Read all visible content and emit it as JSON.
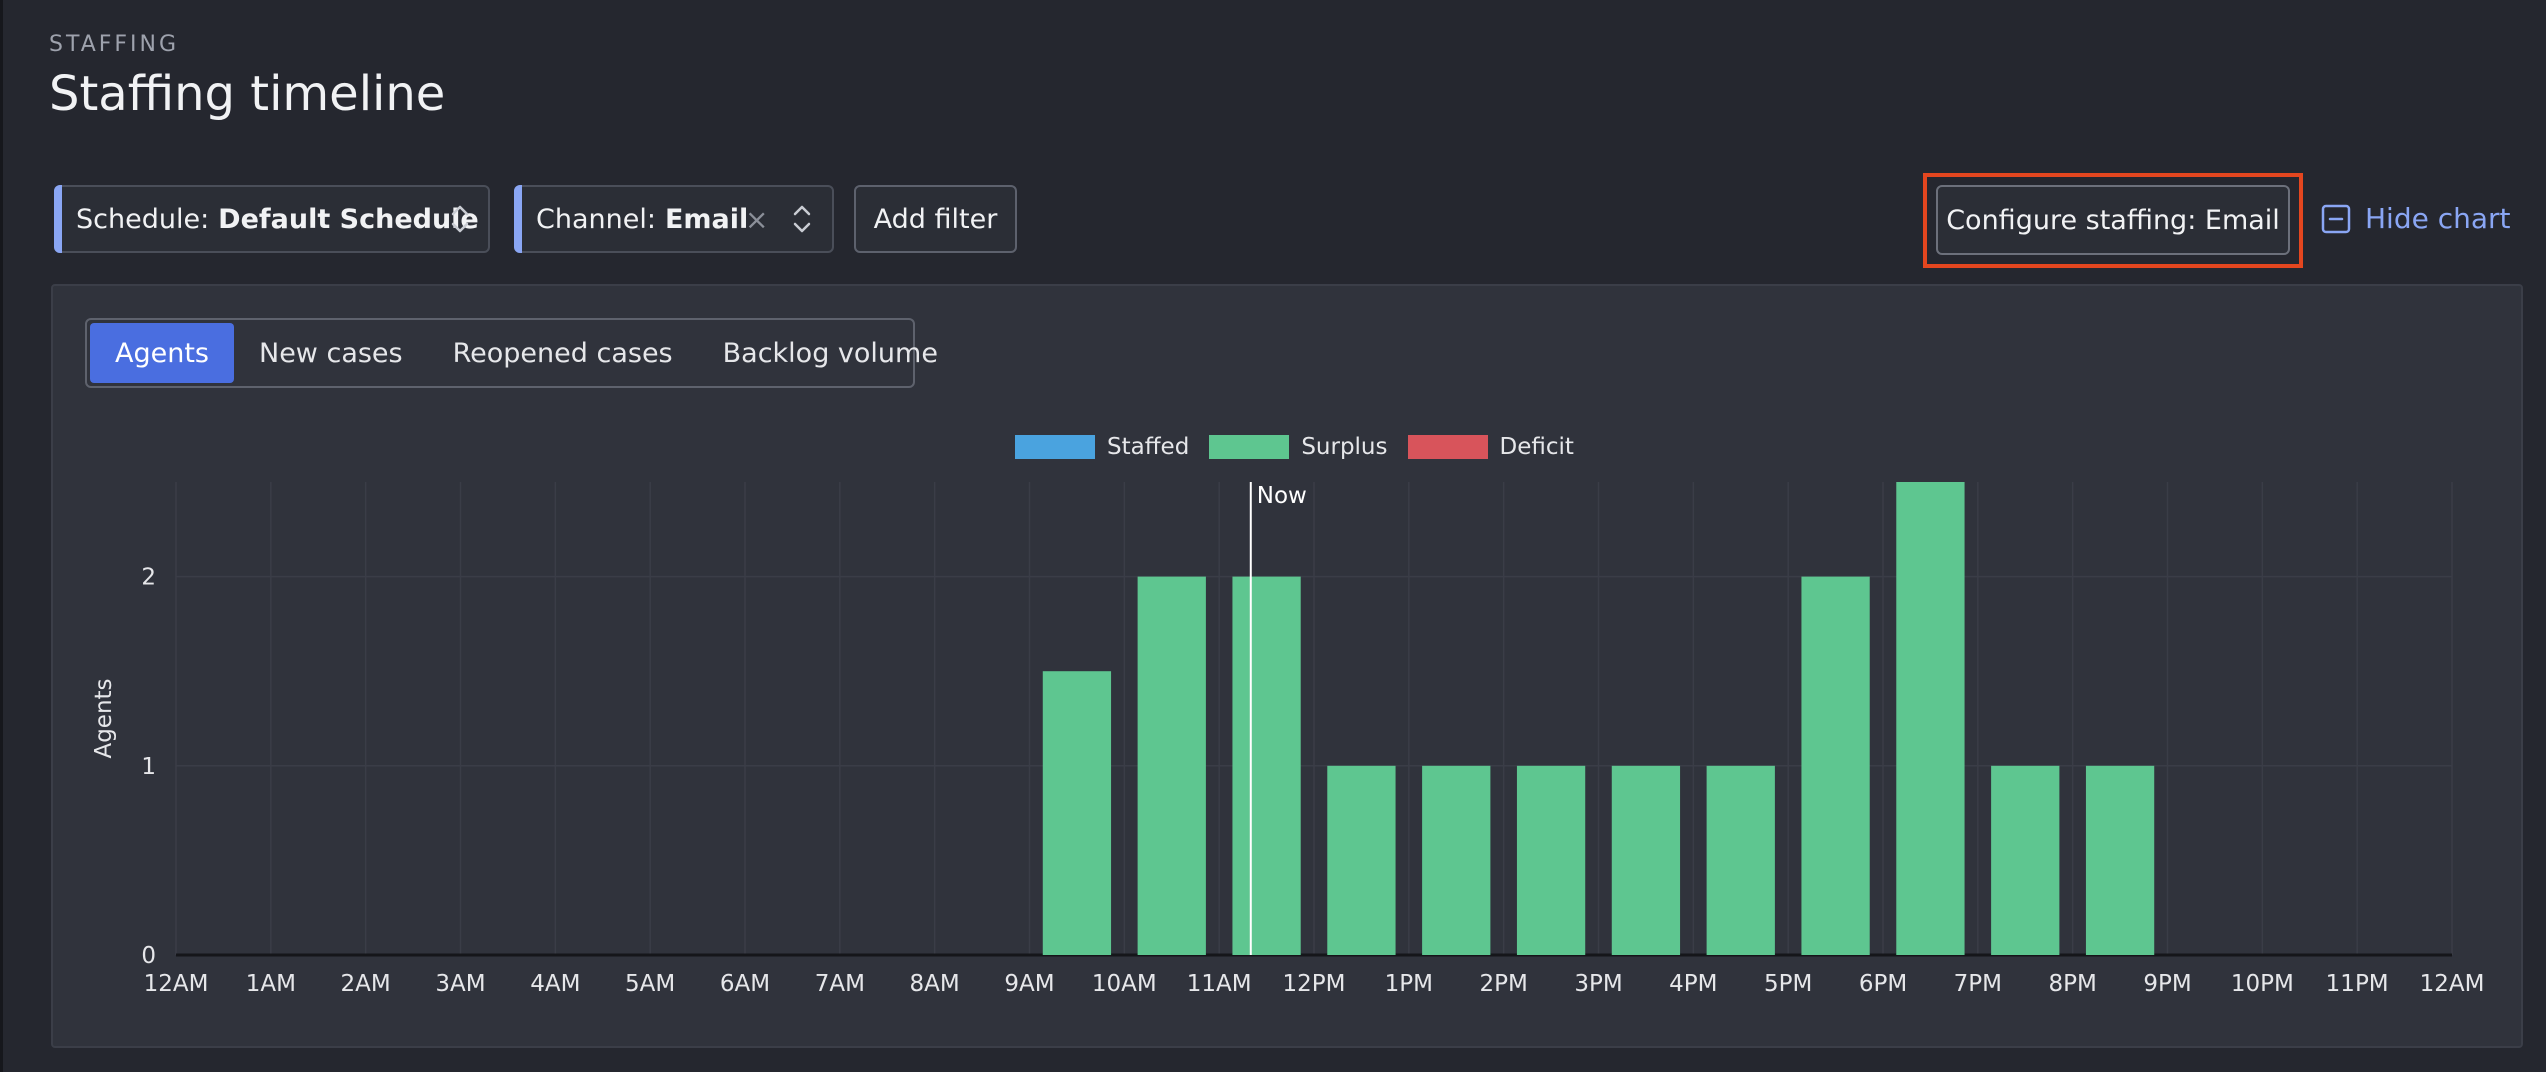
{
  "header": {
    "section_label": "STAFFING",
    "title": "Staffing timeline"
  },
  "filters": {
    "schedule": {
      "label": "Schedule:",
      "value": "Default Schedule"
    },
    "channel": {
      "label": "Channel:",
      "value": "Email",
      "clear_icon": "×"
    },
    "add_filter_label": "Add filter"
  },
  "actions": {
    "configure_label": "Configure staffing: Email",
    "hide_chart_label": "Hide chart"
  },
  "tabs": [
    {
      "label": "Agents",
      "active": true
    },
    {
      "label": "New cases",
      "active": false
    },
    {
      "label": "Reopened cases",
      "active": false
    },
    {
      "label": "Backlog volume",
      "active": false
    }
  ],
  "colors": {
    "staffed": "#4aa3df",
    "surplus": "#5ec690",
    "deficit": "#d8545b",
    "accent": "#4a6ee0",
    "highlight": "#e4461f"
  },
  "chart_data": {
    "type": "bar",
    "legend": [
      {
        "name": "Staffed",
        "color": "#4aa3df"
      },
      {
        "name": "Surplus",
        "color": "#5ec690"
      },
      {
        "name": "Deficit",
        "color": "#d8545b"
      }
    ],
    "legend_position": "top-center",
    "ylabel": "Agents",
    "xlabel": "",
    "ylim": [
      0,
      2.5
    ],
    "yticks": [
      0,
      1,
      2
    ],
    "x_tick_labels": [
      "12AM",
      "1AM",
      "2AM",
      "3AM",
      "4AM",
      "5AM",
      "6AM",
      "7AM",
      "8AM",
      "9AM",
      "10AM",
      "11AM",
      "12PM",
      "1PM",
      "2PM",
      "3PM",
      "4PM",
      "5PM",
      "6PM",
      "7PM",
      "8PM",
      "9PM",
      "10PM",
      "11PM",
      "12AM"
    ],
    "series": [
      {
        "name": "Surplus",
        "values": [
          0,
          0,
          0,
          0,
          0,
          0,
          0,
          0,
          0,
          1.5,
          2,
          2,
          1,
          1,
          1,
          1,
          1,
          2,
          2.5,
          1,
          1,
          0,
          0,
          0
        ]
      }
    ],
    "now_marker": {
      "label": "Now",
      "time": "11:20AM"
    },
    "grid": true
  }
}
